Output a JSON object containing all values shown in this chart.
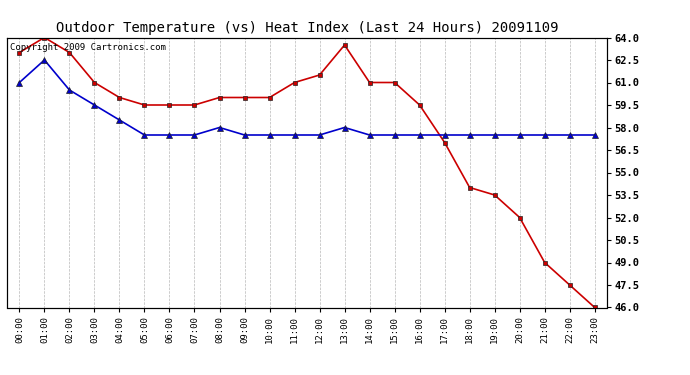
{
  "title": "Outdoor Temperature (vs) Heat Index (Last 24 Hours) 20091109",
  "copyright_text": "Copyright 2009 Cartronics.com",
  "x_labels": [
    "00:00",
    "01:00",
    "02:00",
    "03:00",
    "04:00",
    "05:00",
    "06:00",
    "07:00",
    "08:00",
    "09:00",
    "10:00",
    "11:00",
    "12:00",
    "13:00",
    "14:00",
    "15:00",
    "16:00",
    "17:00",
    "18:00",
    "19:00",
    "20:00",
    "21:00",
    "22:00",
    "23:00"
  ],
  "heat_index": [
    63.0,
    64.0,
    63.0,
    61.0,
    60.0,
    59.5,
    59.5,
    59.5,
    60.0,
    60.0,
    60.0,
    61.0,
    61.5,
    63.5,
    61.0,
    61.0,
    59.5,
    57.0,
    54.0,
    53.5,
    52.0,
    49.0,
    47.5,
    46.0
  ],
  "outdoor_temp": [
    61.0,
    62.5,
    60.5,
    59.5,
    58.5,
    57.5,
    57.5,
    57.5,
    58.0,
    57.5,
    57.5,
    57.5,
    57.5,
    58.0,
    57.5,
    57.5,
    57.5,
    57.5,
    57.5,
    57.5,
    57.5,
    57.5,
    57.5,
    57.5
  ],
  "ylim": [
    46.0,
    64.0
  ],
  "yticks": [
    46.0,
    47.5,
    49.0,
    50.5,
    52.0,
    53.5,
    55.0,
    56.5,
    58.0,
    59.5,
    61.0,
    62.5,
    64.0
  ],
  "heat_index_color": "#cc0000",
  "outdoor_temp_color": "#0000cc",
  "bg_color": "#ffffff",
  "grid_color": "#888888",
  "title_fontsize": 10,
  "copyright_fontsize": 6.5
}
